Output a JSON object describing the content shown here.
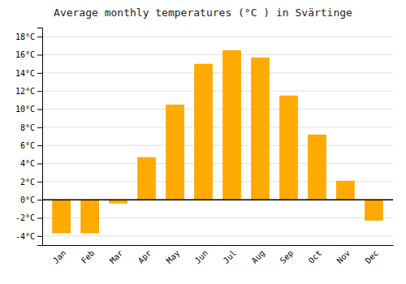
{
  "chart_data": {
    "type": "bar",
    "title": "Average monthly temperatures (°C ) in Svärtinge",
    "categories": [
      "Jan",
      "Feb",
      "Mar",
      "Apr",
      "May",
      "Jun",
      "Jul",
      "Aug",
      "Sep",
      "Oct",
      "Nov",
      "Dec"
    ],
    "values": [
      -3.7,
      -3.7,
      -0.4,
      4.7,
      10.5,
      15.0,
      16.5,
      15.7,
      11.5,
      7.2,
      2.1,
      -2.3
    ],
    "color": "#FFAA00",
    "ylim": [
      -5,
      19
    ],
    "yticks": [
      {
        "value": -4,
        "label": "-4°C"
      },
      {
        "value": -2,
        "label": "-2°C"
      },
      {
        "value": 0,
        "label": "0°C"
      },
      {
        "value": 2,
        "label": "2°C"
      },
      {
        "value": 4,
        "label": "4°C"
      },
      {
        "value": 6,
        "label": "6°C"
      },
      {
        "value": 8,
        "label": "8°C"
      },
      {
        "value": 10,
        "label": "10°C"
      },
      {
        "value": 12,
        "label": "12°C"
      },
      {
        "value": 14,
        "label": "14°C"
      },
      {
        "value": 16,
        "label": "16°C"
      },
      {
        "value": 18,
        "label": "18°C"
      }
    ],
    "grid": true
  }
}
